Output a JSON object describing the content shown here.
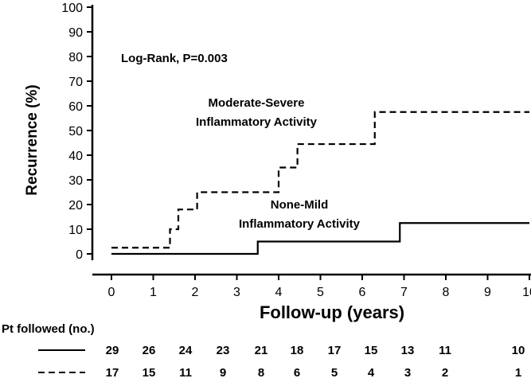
{
  "chart_data": {
    "type": "line",
    "subtype": "kaplan-meier-step",
    "xlabel": "Follow-up (years)",
    "ylabel": "Recurrence (%)",
    "xlim": [
      0,
      10
    ],
    "ylim": [
      0,
      100
    ],
    "x_ticks": [
      0,
      1,
      2,
      3,
      4,
      5,
      6,
      7,
      8,
      9,
      10
    ],
    "y_ticks": [
      0,
      10,
      20,
      30,
      40,
      50,
      60,
      70,
      80,
      90,
      100
    ],
    "grid": false,
    "annotation": "Log-Rank, P=0.003",
    "series": [
      {
        "label_lines": [
          "Moderate-Severe",
          "Inflammatory Activity"
        ],
        "line_style": "dashed",
        "steps": [
          [
            0,
            2.5
          ],
          [
            1.4,
            10
          ],
          [
            1.6,
            18
          ],
          [
            2.05,
            25
          ],
          [
            4.0,
            35
          ],
          [
            4.45,
            44.5
          ],
          [
            6.3,
            57.5
          ],
          [
            10,
            57.5
          ]
        ]
      },
      {
        "label_lines": [
          "None-Mild",
          "Inflammatory Activity"
        ],
        "line_style": "solid",
        "steps": [
          [
            0,
            0
          ],
          [
            3.5,
            5
          ],
          [
            6.9,
            12.5
          ],
          [
            10,
            12.5
          ]
        ]
      }
    ],
    "risk_table": {
      "title": "Pt followed (no.)",
      "rows": [
        {
          "line_style": "solid",
          "values": [
            "29",
            "26",
            "24",
            "23",
            "21",
            "18",
            "17",
            "15",
            "13",
            "11",
            "10"
          ]
        },
        {
          "line_style": "dashed",
          "values": [
            "17",
            "15",
            "11",
            "9",
            "8",
            "6",
            "5",
            "4",
            "3",
            "2",
            "1"
          ]
        }
      ]
    }
  }
}
